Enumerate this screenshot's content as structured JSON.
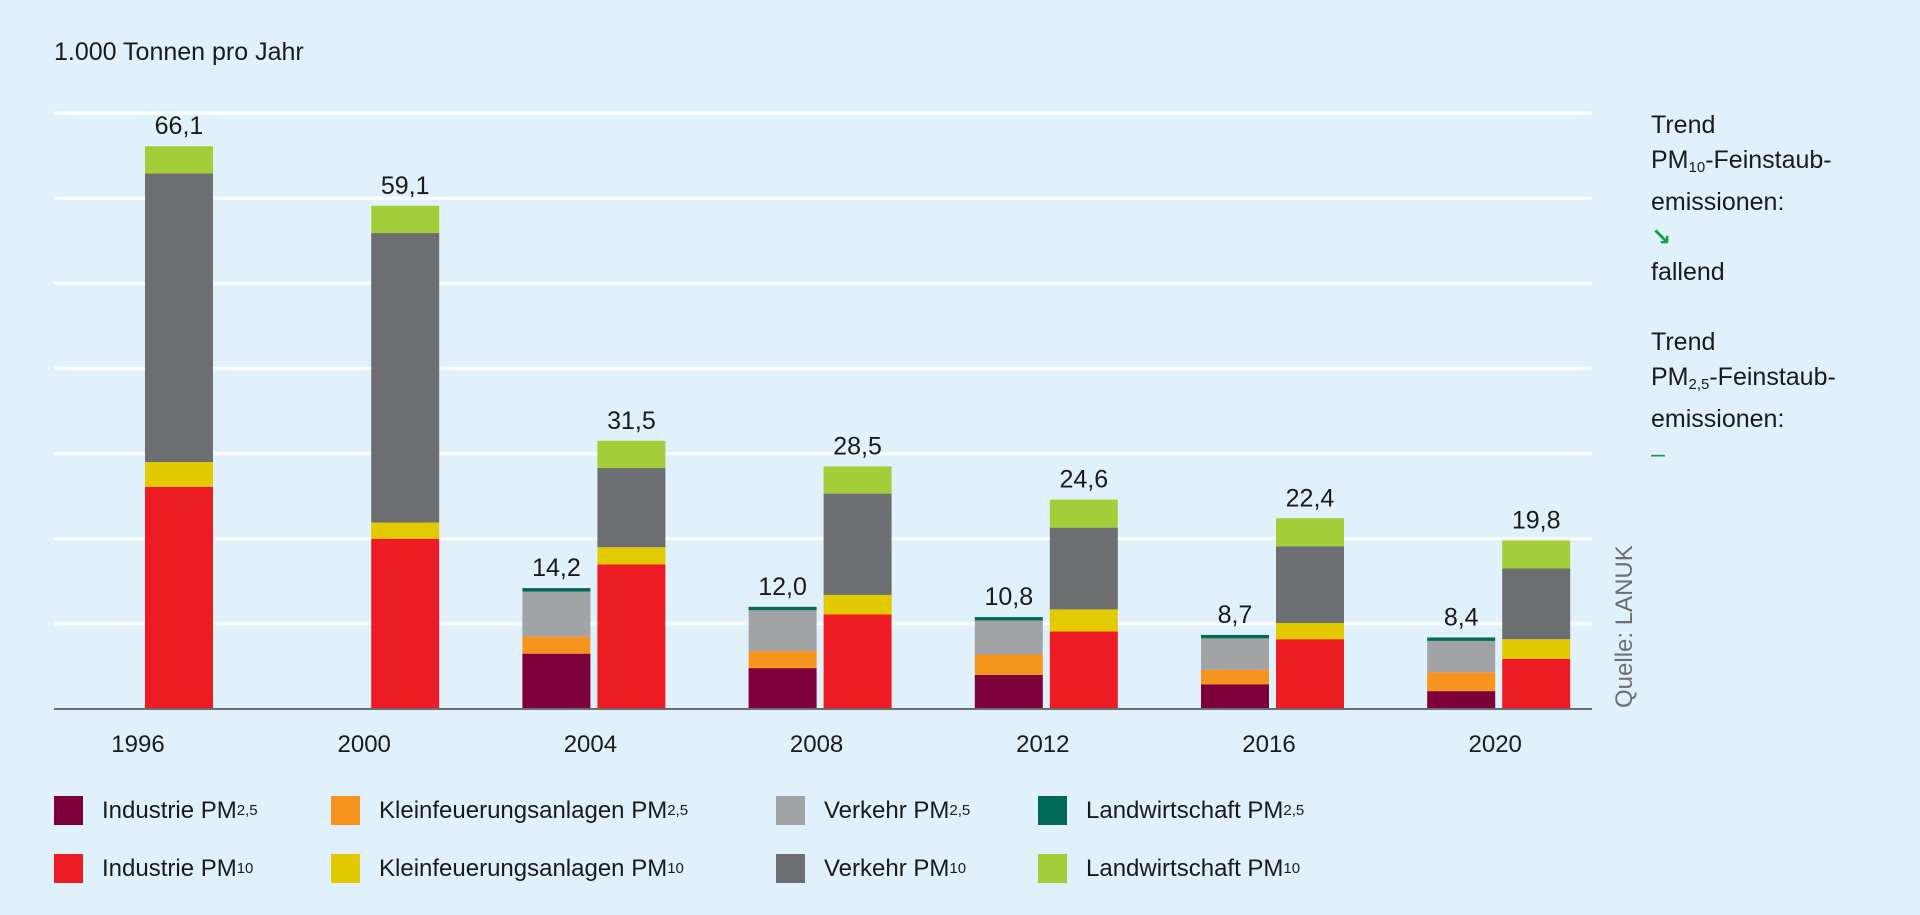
{
  "chart_data": {
    "type": "bar",
    "stacked": true,
    "ylabel": "1.000 Tonnen pro Jahr",
    "ylim": [
      0,
      70
    ],
    "grid": true,
    "legend_position": "bottom",
    "categories": [
      "1996",
      "2000",
      "2004",
      "2008",
      "2012",
      "2016",
      "2020"
    ],
    "pm25": {
      "totals": [
        null,
        null,
        "14,2",
        "12,0",
        "10,8",
        "8,7",
        "8,4"
      ],
      "series": [
        {
          "name": "Industrie PM",
          "sub": "2,5",
          "color": "#7d0038",
          "values": [
            null,
            null,
            6.5,
            4.8,
            4.0,
            2.9,
            2.1
          ]
        },
        {
          "name": "Kleinfeuerungsanlagen PM",
          "sub": "2,5",
          "color": "#f7941d",
          "values": [
            null,
            null,
            2.0,
            2.0,
            2.4,
            1.7,
            2.2
          ]
        },
        {
          "name": "Verkehr PM",
          "sub": "2,5",
          "color": "#a2a3a5",
          "values": [
            null,
            null,
            5.3,
            4.8,
            4.0,
            3.7,
            3.7
          ]
        },
        {
          "name": "Landwirtschaft PM",
          "sub": "2,5",
          "color": "#006a55",
          "values": [
            null,
            null,
            0.4,
            0.4,
            0.4,
            0.4,
            0.4
          ]
        }
      ]
    },
    "pm10": {
      "totals": [
        "66,1",
        "59,1",
        "31,5",
        "28,5",
        "24,6",
        "22,4",
        "19,8"
      ],
      "series": [
        {
          "name": "Industrie PM",
          "sub": "10",
          "color": "#ed1c24",
          "values": [
            26.1,
            20.0,
            17.0,
            11.1,
            9.1,
            8.2,
            5.9
          ]
        },
        {
          "name": "Kleinfeuerungsanlagen PM",
          "sub": "10",
          "color": "#e2c900",
          "values": [
            2.9,
            1.9,
            2.0,
            2.3,
            2.6,
            1.9,
            2.3
          ]
        },
        {
          "name": "Verkehr PM",
          "sub": "10",
          "color": "#6d6e71",
          "values": [
            33.9,
            34.0,
            9.3,
            11.9,
            9.6,
            9.0,
            8.3
          ]
        },
        {
          "name": "Landwirtschaft PM",
          "sub": "10",
          "color": "#a3cd39",
          "values": [
            3.2,
            3.2,
            3.2,
            3.2,
            3.3,
            3.3,
            3.3
          ]
        }
      ]
    }
  },
  "trend": {
    "pm10": {
      "line1": "Trend",
      "pm": "PM",
      "sub": "10",
      "rest": "-Feinstaub-",
      "line3": "emissionen:",
      "icon": "arrow-down-right-icon",
      "value": "fallend"
    },
    "pm25": {
      "line1": "Trend",
      "pm": "PM",
      "sub": "2,5",
      "rest": "-Feinstaub-",
      "line3": "emissionen:",
      "value": "–"
    }
  },
  "source": "Quelle: LANUK",
  "colors": {
    "background": "#e0f1fb",
    "trend_green": "#14a04a"
  }
}
